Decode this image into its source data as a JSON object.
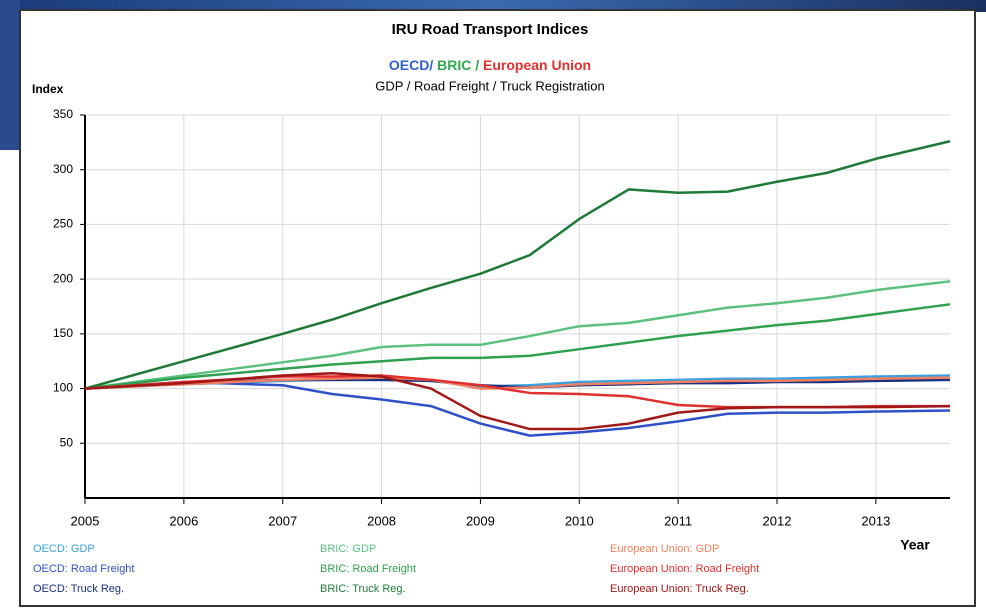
{
  "chart_data": {
    "type": "line",
    "title": "IRU Road Transport Indices",
    "subtitle_groups": [
      {
        "text": "OECD/",
        "color": "#2f5fd0"
      },
      {
        "text": " BRIC /",
        "color": "#2fa850"
      },
      {
        "text": " European Union",
        "color": "#e03030"
      }
    ],
    "subtitle": "GDP / Road Freight / Truck Registration",
    "ylabel": "Index",
    "xlabel": "Year",
    "x": [
      2005,
      2006,
      2007,
      2007.5,
      2008,
      2008.5,
      2009,
      2009.5,
      2010,
      2010.5,
      2011,
      2011.5,
      2012,
      2012.5,
      2013,
      2013.75
    ],
    "xlim": [
      2005,
      2013.75
    ],
    "xticks": [
      2005,
      2006,
      2007,
      2008,
      2009,
      2010,
      2011,
      2012,
      2013
    ],
    "ylim": [
      0,
      350
    ],
    "yticks": [
      50,
      100,
      150,
      200,
      250,
      300,
      350
    ],
    "grid": true,
    "series": [
      {
        "name": "OECD: GDP",
        "color": "#3aa0e0",
        "values": [
          100,
          104,
          107,
          108,
          108,
          107,
          102,
          103,
          106,
          107,
          108,
          109,
          109,
          110,
          111,
          112
        ]
      },
      {
        "name": "OECD: Road Freight",
        "color": "#3050c8",
        "values": [
          100,
          106,
          103,
          95,
          90,
          84,
          68,
          57,
          60,
          64,
          70,
          77,
          78,
          78,
          79,
          80
        ]
      },
      {
        "name": "OECD: Truck Reg.",
        "color": "#1a3080",
        "values": [
          100,
          105,
          108,
          108,
          108,
          107,
          103,
          101,
          103,
          104,
          105,
          105,
          106,
          106,
          107,
          108
        ]
      },
      {
        "name": "BRIC: GDP",
        "color": "#5cc080",
        "values": [
          100,
          112,
          124,
          130,
          138,
          140,
          140,
          148,
          157,
          160,
          167,
          174,
          178,
          183,
          190,
          198
        ]
      },
      {
        "name": "BRIC: Road Freight",
        "color": "#30a050",
        "values": [
          100,
          110,
          118,
          122,
          125,
          128,
          128,
          130,
          136,
          142,
          148,
          153,
          158,
          162,
          168,
          177
        ]
      },
      {
        "name": "BRIC: Truck Reg.",
        "color": "#1f7a3a",
        "values": [
          100,
          125,
          150,
          163,
          178,
          192,
          205,
          222,
          255,
          282,
          279,
          280,
          289,
          297,
          310,
          326
        ]
      },
      {
        "name": "European Union: GDP",
        "color": "#f08060",
        "values": [
          100,
          104,
          108,
          109,
          110,
          108,
          100,
          101,
          104,
          105,
          106,
          107,
          107,
          108,
          109,
          110
        ]
      },
      {
        "name": "European Union: Road Freight",
        "color": "#e03030",
        "values": [
          100,
          106,
          111,
          111,
          112,
          108,
          103,
          96,
          95,
          93,
          85,
          83,
          83,
          83,
          84,
          84
        ]
      },
      {
        "name": "European Union: Truck Reg.",
        "color": "#a01818",
        "values": [
          100,
          105,
          112,
          114,
          111,
          100,
          75,
          63,
          63,
          68,
          78,
          82,
          83,
          83,
          83,
          84
        ]
      }
    ]
  }
}
